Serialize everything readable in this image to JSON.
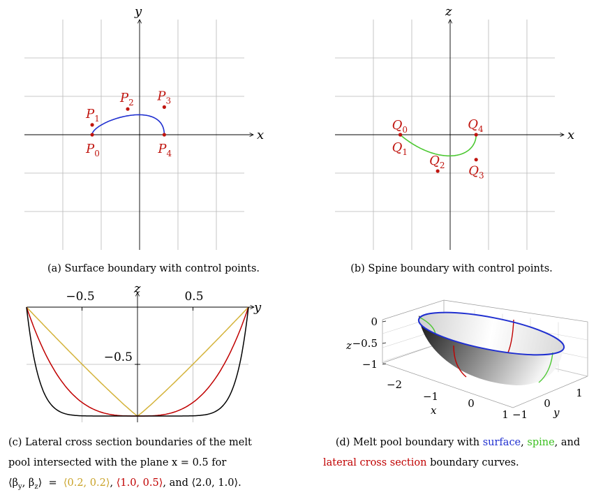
{
  "panels": {
    "a": {
      "xlabel": "x",
      "ylabel": "y",
      "curve_color": "#1f2fd0",
      "control_points": [
        {
          "label": "P",
          "sub": "0",
          "x": -2.4,
          "y": 0.0
        },
        {
          "label": "P",
          "sub": "1",
          "x": -2.4,
          "y": 0.5
        },
        {
          "label": "P",
          "sub": "2",
          "x": -0.6,
          "y": 1.3
        },
        {
          "label": "P",
          "sub": "3",
          "x": 1.25,
          "y": 1.4
        },
        {
          "label": "P",
          "sub": "4",
          "x": 1.25,
          "y": 0.0
        }
      ]
    },
    "b": {
      "xlabel": "x",
      "ylabel": "z",
      "curve_color": "#4cc832",
      "control_points": [
        {
          "label": "Q",
          "sub": "0",
          "x": -2.4,
          "y": 0.0
        },
        {
          "label": "Q",
          "sub": "1",
          "x": -2.4,
          "y": 0.0
        },
        {
          "label": "Q",
          "sub": "2",
          "x": -0.6,
          "y": -1.75
        },
        {
          "label": "Q",
          "sub": "3",
          "x": 1.25,
          "y": -1.2
        },
        {
          "label": "Q",
          "sub": "4",
          "x": 1.25,
          "y": 0.0
        }
      ]
    },
    "c": {
      "xlabel": "y",
      "ylabel": "z",
      "ticks": {
        "x_neg": "−0.5",
        "x_pos": "0.5",
        "y_neg": "−0.5"
      },
      "series": [
        {
          "exponent": 1.07,
          "color": "#d4b33a"
        },
        {
          "exponent": 3.0,
          "color": "#c00000"
        },
        {
          "exponent": 9.0,
          "color": "#000000"
        }
      ]
    },
    "d": {
      "ticks": {
        "z": [
          "0",
          "−0.5",
          "−1"
        ],
        "x": [
          "−2",
          "−1",
          "0",
          "1"
        ],
        "y": [
          "1",
          "0",
          "−1"
        ]
      },
      "xlabel": "x",
      "ylabel": "y",
      "zlabel": "z",
      "colors": {
        "surface": "#1f2fd0",
        "spine": "#4cc832",
        "lateral": "#c00000"
      }
    }
  },
  "captions": {
    "a": "(a) Surface boundary with control points.",
    "b": "(b) Spine boundary with control points.",
    "c_line1": "(c) Lateral cross section boundaries of the melt",
    "c_line2": "pool intersected with the plane  x  =  0.5  for",
    "c_beta": "⟨β",
    "c_sub_y": "y",
    "c_mid": ", β",
    "c_sub_z": "z",
    "c_eq": "⟩  =  ",
    "c_v1": "⟨0.2, 0.2⟩",
    "c_v2": "⟨1.0, 0.5⟩",
    "c_and": ", and ",
    "c_v3": "⟨2.0, 1.0⟩",
    "c_end": ".",
    "d_line1_pre": "(d) Melt pool boundary with ",
    "d_surface": "surface",
    "d_comma1": ", ",
    "d_spine": "spine",
    "d_and": ", and",
    "d_lateral": "lateral cross section",
    "d_end": " boundary curves."
  },
  "colors": {
    "control_point": "#c0150f",
    "grid": "#b5b5b5",
    "gold": "#c9a227",
    "red": "#c00000",
    "blue": "#1f2fd0",
    "green": "#3bbf1f"
  }
}
